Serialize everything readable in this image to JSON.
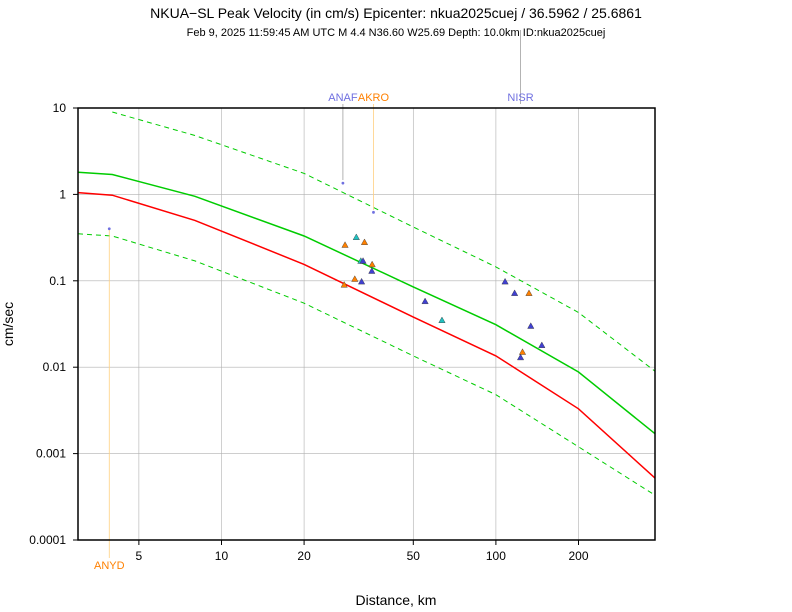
{
  "chart_data": {
    "type": "scatter",
    "title": "NKUA−SL Peak Velocity (in cm/s) Epicenter: nkua2025cuej / 36.5962 / 25.6861",
    "subtitle": "Feb  9, 2025 11:59:45 AM UTC    M 4.4    N36.60 W25.69    Depth: 10.0km    ID:nkua2025cuej",
    "xlabel": "Distance, km",
    "ylabel": "cm/sec",
    "x_scale": "log",
    "y_scale": "log",
    "xlim": [
      3,
      380
    ],
    "ylim": [
      0.0001,
      10
    ],
    "grid": true,
    "x_ticks": [
      {
        "value": 5,
        "label": "5"
      },
      {
        "value": 10,
        "label": "10"
      },
      {
        "value": 20,
        "label": "20"
      },
      {
        "value": 50,
        "label": "50"
      },
      {
        "value": 100,
        "label": "100"
      },
      {
        "value": 200,
        "label": "200"
      }
    ],
    "y_ticks": [
      {
        "value": 0.0001,
        "label": "0.0001"
      },
      {
        "value": 0.001,
        "label": "0.001"
      },
      {
        "value": 0.01,
        "label": "0.01"
      },
      {
        "value": 0.1,
        "label": "0.1"
      },
      {
        "value": 1,
        "label": "1"
      },
      {
        "value": 10,
        "label": "10"
      }
    ],
    "curves": [
      {
        "style": "solid",
        "color": "#00cc00",
        "points": [
          [
            3,
            1.8
          ],
          [
            4,
            1.7
          ],
          [
            8,
            0.95
          ],
          [
            20,
            0.33
          ],
          [
            50,
            0.085
          ],
          [
            100,
            0.031
          ],
          [
            200,
            0.0088
          ],
          [
            380,
            0.0017
          ]
        ]
      },
      {
        "style": "solid",
        "color": "#ff0000",
        "points": [
          [
            3,
            1.05
          ],
          [
            4,
            0.98
          ],
          [
            8,
            0.5
          ],
          [
            20,
            0.155
          ],
          [
            50,
            0.038
          ],
          [
            100,
            0.0135
          ],
          [
            200,
            0.0033
          ],
          [
            380,
            0.00052
          ]
        ]
      },
      {
        "style": "dashed",
        "color": "#00cc00",
        "points": [
          [
            4,
            9.0
          ],
          [
            8,
            4.8
          ],
          [
            20,
            1.75
          ],
          [
            50,
            0.42
          ],
          [
            100,
            0.145
          ],
          [
            200,
            0.043
          ],
          [
            380,
            0.009
          ]
        ]
      },
      {
        "style": "dashed",
        "color": "#00cc00",
        "points": [
          [
            3,
            0.35
          ],
          [
            4,
            0.33
          ],
          [
            8,
            0.17
          ],
          [
            20,
            0.055
          ],
          [
            50,
            0.0135
          ],
          [
            100,
            0.0048
          ],
          [
            200,
            0.0012
          ],
          [
            380,
            0.00033
          ]
        ]
      }
    ],
    "stations": [
      {
        "name": "ANAF",
        "distance": 27.7,
        "color": "#7070e0"
      },
      {
        "name": "AKRO",
        "distance": 35.8,
        "color": "#ff8000"
      },
      {
        "name": "NISR",
        "distance": 123,
        "color": "#7070e0"
      },
      {
        "name": "ANYD",
        "distance": 3.9,
        "color": "#ff8000"
      }
    ],
    "points": [
      {
        "x": 3.9,
        "y": 0.4,
        "marker": "dot",
        "color": "#7070e0"
      },
      {
        "x": 27.7,
        "y": 1.35,
        "marker": "dot",
        "color": "#7070e0"
      },
      {
        "x": 35.8,
        "y": 0.62,
        "marker": "dot",
        "color": "#7070e0"
      },
      {
        "x": 28.2,
        "y": 0.26,
        "marker": "triangle",
        "color": "#ff8000"
      },
      {
        "x": 31.0,
        "y": 0.32,
        "marker": "triangle",
        "color": "#20c0c0"
      },
      {
        "x": 33.2,
        "y": 0.28,
        "marker": "triangle",
        "color": "#ff8000"
      },
      {
        "x": 32.2,
        "y": 0.17,
        "marker": "triangle",
        "color": "#20c0c0"
      },
      {
        "x": 32.8,
        "y": 0.17,
        "marker": "triangle",
        "color": "#4040d0"
      },
      {
        "x": 35.4,
        "y": 0.155,
        "marker": "triangle",
        "color": "#ff8000"
      },
      {
        "x": 35.3,
        "y": 0.13,
        "marker": "triangle",
        "color": "#4040d0"
      },
      {
        "x": 30.6,
        "y": 0.105,
        "marker": "triangle",
        "color": "#ff8000"
      },
      {
        "x": 32.4,
        "y": 0.098,
        "marker": "triangle",
        "color": "#4040d0"
      },
      {
        "x": 28.0,
        "y": 0.09,
        "marker": "triangle",
        "color": "#ff8000"
      },
      {
        "x": 55.2,
        "y": 0.058,
        "marker": "triangle",
        "color": "#4040d0"
      },
      {
        "x": 63.6,
        "y": 0.035,
        "marker": "triangle",
        "color": "#20c0c0"
      },
      {
        "x": 108,
        "y": 0.098,
        "marker": "triangle",
        "color": "#4040d0"
      },
      {
        "x": 117,
        "y": 0.072,
        "marker": "triangle",
        "color": "#4040d0"
      },
      {
        "x": 132,
        "y": 0.072,
        "marker": "triangle",
        "color": "#ff8000"
      },
      {
        "x": 134,
        "y": 0.03,
        "marker": "triangle",
        "color": "#4040d0"
      },
      {
        "x": 147,
        "y": 0.018,
        "marker": "triangle",
        "color": "#4040d0"
      },
      {
        "x": 125,
        "y": 0.015,
        "marker": "triangle",
        "color": "#ff8000"
      },
      {
        "x": 123,
        "y": 0.013,
        "marker": "triangle",
        "color": "#4040d0"
      }
    ]
  }
}
